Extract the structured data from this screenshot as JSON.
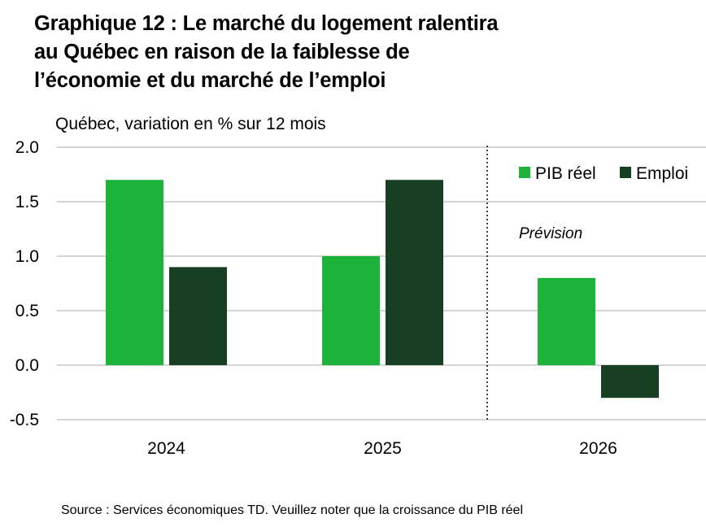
{
  "title_lines": [
    "Graphique 12 : Le marché du logement ralentira",
    "au Québec en raison de la faiblesse de",
    "l’économie et du marché de l’emploi"
  ],
  "subtitle": "Québec, variation en % sur 12 mois",
  "source": "Source : Services économiques TD. Veuillez noter que la croissance du PIB réel",
  "colors": {
    "pib": "#1db33b",
    "emploi": "#173f24",
    "grid": "#d4d4d4"
  },
  "chart_data": {
    "type": "bar",
    "categories": [
      "2024",
      "2025",
      "2026"
    ],
    "series": [
      {
        "name": "PIB réel",
        "values": [
          1.7,
          1.0,
          0.8
        ]
      },
      {
        "name": "Emploi",
        "values": [
          0.9,
          1.7,
          -0.3
        ]
      }
    ],
    "ylim": [
      -0.5,
      2.0
    ],
    "yticks": [
      "2.0",
      "1.5",
      "1.0",
      "0.5",
      "0.0",
      "-0.5"
    ],
    "annotation": "Prévision",
    "legend": "top-right",
    "grid": true
  }
}
